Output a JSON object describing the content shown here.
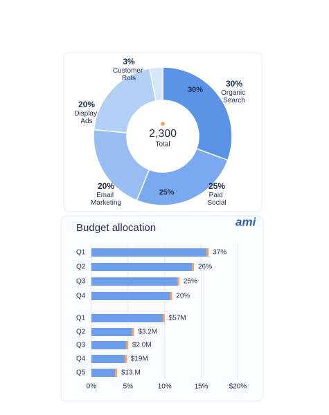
{
  "chart_data": [
    {
      "type": "donut",
      "categories": [
        "Organic Search",
        "Paid Social",
        "Email Marketing",
        "Display Ads",
        "Customer Rols"
      ],
      "values": [
        30,
        25,
        20,
        20,
        3
      ],
      "value_labels": [
        "30%",
        "25%",
        "20%",
        "20%",
        "3%"
      ],
      "colors": [
        "#5b93e6",
        "#7aa9ef",
        "#97bdf2",
        "#b2cff6",
        "#d6e5fa"
      ],
      "total": {
        "value": 2300,
        "label": "2,300"
      },
      "total_caption": "Total"
    },
    {
      "type": "hbar",
      "title": "Budget allocation",
      "logo": "ami",
      "color": "#6d9eeb",
      "groups": [
        {
          "categories": [
            "Q1",
            "Q2",
            "Q3",
            "Q4"
          ],
          "values": [
            16,
            14,
            12,
            11
          ],
          "annotations": [
            "37%",
            "26%",
            "25%",
            "20%"
          ]
        },
        {
          "categories": [
            "Q1",
            "Q2",
            "Q3",
            "Q4",
            "Q5"
          ],
          "values": [
            10,
            5.8,
            5,
            4.8,
            3.5
          ],
          "annotations": [
            "$57M",
            "$3.2M",
            "$2.0M",
            "$19M",
            "$13.M"
          ]
        }
      ],
      "xlim": [
        0,
        21
      ],
      "xticks": [
        {
          "value": 0,
          "label": "0%"
        },
        {
          "value": 5,
          "label": "5%"
        },
        {
          "value": 10,
          "label": "10%"
        },
        {
          "value": 15,
          "label": "15%"
        },
        {
          "value": 20,
          "label": "$20%"
        }
      ],
      "grid": true
    }
  ]
}
